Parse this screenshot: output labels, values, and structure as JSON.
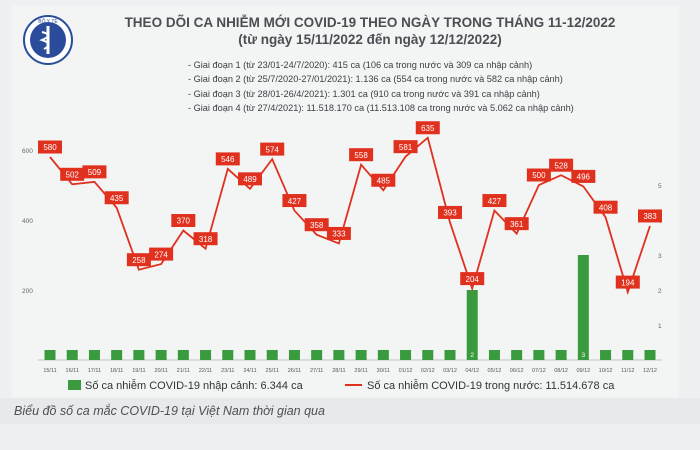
{
  "chart_data": {
    "type": "bar+line",
    "title": "THEO DÕI CA NHIỄM MỚI COVID-19 THEO NGÀY TRONG THÁNG 11-12/2022",
    "subtitle": "(từ ngày 15/11/2022 đến ngày 12/12/2022)",
    "categories": [
      "15/11",
      "16/11",
      "17/11",
      "18/11",
      "19/11",
      "20/11",
      "21/11",
      "22/11",
      "23/11",
      "24/11",
      "25/11",
      "26/11",
      "27/11",
      "28/11",
      "29/11",
      "30/11",
      "01/12",
      "02/12",
      "03/12",
      "04/12",
      "05/12",
      "06/12",
      "07/12",
      "08/12",
      "09/12",
      "10/12",
      "11/12",
      "12/12"
    ],
    "series": [
      {
        "name": "Số ca nhiễm COVID-19 trong nước: 11.514.678 ca",
        "type": "line",
        "axis": "left",
        "values": [
          580,
          502,
          509,
          435,
          258,
          274,
          370,
          318,
          546,
          489,
          574,
          427,
          358,
          333,
          558,
          485,
          581,
          635,
          393,
          204,
          427,
          361,
          500,
          528,
          496,
          408,
          194,
          383
        ]
      },
      {
        "name": "Số ca nhiễm COVID-19 nhập cảnh: 6.344 ca",
        "type": "bar",
        "axis": "right",
        "values": [
          0,
          0,
          0,
          0,
          0,
          0,
          0,
          0,
          0,
          0,
          0,
          0,
          0,
          0,
          0,
          0,
          0,
          0,
          0,
          2,
          0,
          0,
          0,
          0,
          3,
          0,
          0,
          0
        ]
      }
    ],
    "left_ticks": [
      "200",
      "400",
      "600"
    ],
    "right_ticks": [
      "1",
      "2",
      "3",
      "4",
      "5"
    ],
    "ylim_left": [
      0,
      700
    ],
    "ylim_right": [
      0,
      7
    ],
    "bar_labels": [
      "2",
      "3"
    ],
    "legend_position": "bottom",
    "colors": {
      "line": "#e0301e",
      "bar": "#3a9a3e",
      "label_bg": "#e0301e"
    }
  },
  "notes": [
    "- Giai đoạn 1 (từ 23/01-24/7/2020): 415 ca (106 ca trong nước và 309 ca nhập cảnh)",
    "- Giai đoạn 2 (từ 25/7/2020-27/01/2021): 1.136 ca (554 ca trong nước và 582 ca nhập cảnh)",
    "- Giai đoạn 3 (từ 28/01-26/4/2021): 1.301 ca (910 ca trong nước và 391 ca nhập cảnh)",
    "- Giai đoạn 4 (từ 27/4/2021): 11.518.170 ca (11.513.108 ca trong nước và 5.062 ca nhập cảnh)"
  ],
  "caption": "Biểu đồ số ca mắc COVID-19 tại Việt Nam thời gian qua",
  "logo": {
    "name": "ministry-of-health-emblem",
    "text": "BỘ Y TẾ"
  }
}
